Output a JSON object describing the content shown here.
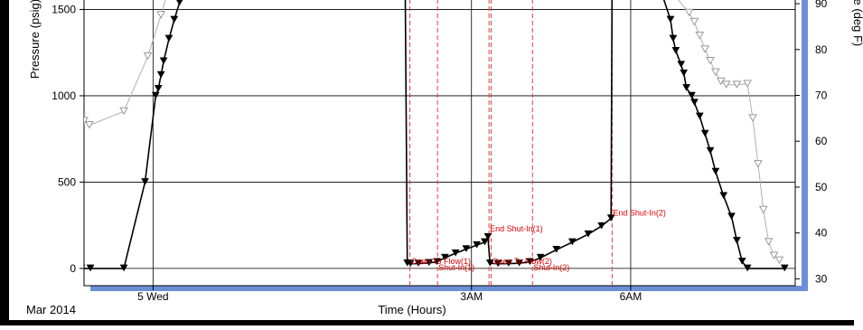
{
  "chart_data": {
    "type": "line",
    "title": "",
    "xlabel": "Time (Hours)",
    "date_label": "Mar 2014",
    "ylabel_left": "Pressure (psig)",
    "ylabel_right": "Temperature (deg F)",
    "ylim_left": [
      -100,
      1560
    ],
    "ylim_right": [
      28.5,
      91
    ],
    "xlim_hours": [
      -4.3,
      9.1
    ],
    "grid": true,
    "x_ticks": [
      {
        "hour": -3,
        "label": "5 Wed"
      },
      {
        "hour": 3,
        "label": "3AM"
      },
      {
        "hour": 6,
        "label": "6AM"
      }
    ],
    "y_ticks_left": [
      {
        "value": 0,
        "label": "0"
      },
      {
        "value": 500,
        "label": "500"
      },
      {
        "value": 1000,
        "label": "1000"
      },
      {
        "value": 1500,
        "label": "1500"
      }
    ],
    "y_ticks_right": [
      {
        "value": 30,
        "label": "30"
      },
      {
        "value": 40,
        "label": "40"
      },
      {
        "value": 50,
        "label": "50"
      },
      {
        "value": 60,
        "label": "60"
      },
      {
        "value": 70,
        "label": "70"
      },
      {
        "value": 80,
        "label": "80"
      },
      {
        "value": 90,
        "label": "90"
      }
    ],
    "events": [
      {
        "hour": 1.84,
        "label": "Open To Flow(1)",
        "label_value": 25
      },
      {
        "hour": 2.36,
        "label": "Shut-In(1)",
        "label_value": -10
      },
      {
        "hour": 3.33,
        "label": "End Shut-In(1)",
        "label_value": 215
      },
      {
        "hour": 3.37,
        "label": "Open To Flow(2)",
        "label_value": 25
      },
      {
        "hour": 4.15,
        "label": "Shut-In(2)",
        "label_value": -10
      },
      {
        "hour": 5.65,
        "label": "End Shut-In(2)",
        "label_value": 305
      }
    ],
    "series": [
      {
        "role": "pressure",
        "color": "#000000",
        "values": [
          [
            -4.35,
            0
          ],
          [
            -4.18,
            0
          ],
          [
            -3.55,
            0
          ],
          [
            -3.15,
            500
          ],
          [
            -2.95,
            1000
          ],
          [
            -2.9,
            1040
          ],
          [
            -2.85,
            1120
          ],
          [
            -2.8,
            1200
          ],
          [
            -2.7,
            1330
          ],
          [
            -2.6,
            1440
          ],
          [
            -2.5,
            1540
          ],
          [
            -2.45,
            1600
          ],
          [
            1.75,
            1700
          ],
          [
            1.79,
            30
          ],
          [
            1.85,
            27
          ],
          [
            2.0,
            28
          ],
          [
            2.2,
            32
          ],
          [
            2.35,
            38
          ],
          [
            2.5,
            62
          ],
          [
            2.7,
            88
          ],
          [
            2.9,
            112
          ],
          [
            3.1,
            135
          ],
          [
            3.25,
            152
          ],
          [
            3.31,
            182
          ],
          [
            3.35,
            30
          ],
          [
            3.5,
            27
          ],
          [
            3.7,
            28
          ],
          [
            3.9,
            30
          ],
          [
            4.1,
            38
          ],
          [
            4.3,
            62
          ],
          [
            4.6,
            108
          ],
          [
            4.9,
            152
          ],
          [
            5.2,
            198
          ],
          [
            5.45,
            245
          ],
          [
            5.63,
            290
          ],
          [
            5.65,
            1700
          ],
          [
            6.5,
            1700
          ],
          [
            6.6,
            1580
          ],
          [
            6.75,
            1440
          ],
          [
            6.8,
            1330
          ],
          [
            6.85,
            1260
          ],
          [
            6.95,
            1180
          ],
          [
            7.0,
            1130
          ],
          [
            7.05,
            1045
          ],
          [
            7.15,
            1000
          ],
          [
            7.2,
            960
          ],
          [
            7.3,
            880
          ],
          [
            7.4,
            780
          ],
          [
            7.5,
            680
          ],
          [
            7.6,
            560
          ],
          [
            7.75,
            420
          ],
          [
            7.9,
            300
          ],
          [
            8.0,
            160
          ],
          [
            8.1,
            40
          ],
          [
            8.2,
            0
          ],
          [
            8.9,
            0
          ]
        ]
      },
      {
        "role": "temperature",
        "color": "#8a8a8a",
        "values": [
          [
            -4.35,
            65.3
          ],
          [
            -4.3,
            64.4
          ],
          [
            -4.2,
            63.5
          ],
          [
            -3.55,
            66.5
          ],
          [
            -3.1,
            78.5
          ],
          [
            -2.85,
            87.5
          ],
          [
            -2.75,
            91.5
          ],
          [
            6.85,
            91.5
          ],
          [
            7.1,
            88
          ],
          [
            7.2,
            86
          ],
          [
            7.3,
            83
          ],
          [
            7.4,
            80
          ],
          [
            7.5,
            77.5
          ],
          [
            7.6,
            75
          ],
          [
            7.7,
            73
          ],
          [
            7.8,
            72.3
          ],
          [
            8.0,
            72.3
          ],
          [
            8.2,
            72.5
          ],
          [
            8.3,
            65
          ],
          [
            8.4,
            55
          ],
          [
            8.5,
            45
          ],
          [
            8.6,
            38
          ],
          [
            8.7,
            35
          ],
          [
            8.8,
            34
          ]
        ]
      }
    ]
  }
}
